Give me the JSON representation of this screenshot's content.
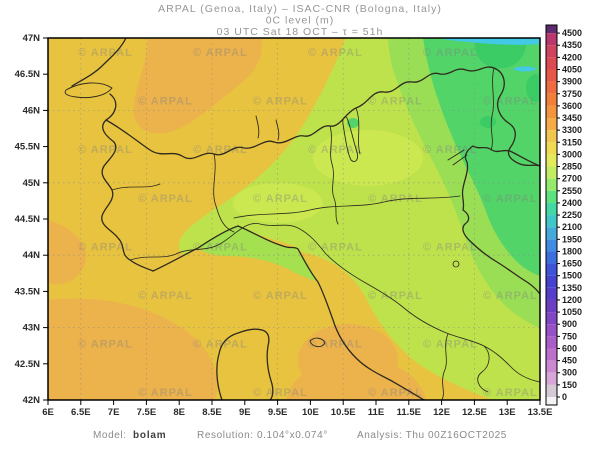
{
  "header": {
    "line1": "ARPAL (Genoa, Italy)  –  ISAC-CNR (Bologna, Italy)",
    "line2": "0C level (m)",
    "line3": "03 UTC Sat 18 OCT  –  τ = 51h"
  },
  "footer": {
    "model_label": "Model:",
    "model_value": "bolam",
    "resolution": "Resolution: 0.104°x0.074°",
    "analysis": "Analysis: Thu 00Z16OCT2025"
  },
  "watermark": {
    "text": "© ARPAL"
  },
  "axes": {
    "lat_labels": [
      "47N",
      "46.5N",
      "46N",
      "45.5N",
      "45N",
      "44.5N",
      "44N",
      "43.5N",
      "43N",
      "42.5N",
      "42N"
    ],
    "lon_labels": [
      "6E",
      "6.5E",
      "7E",
      "7.5E",
      "8E",
      "8.5E",
      "9E",
      "9.5E",
      "10E",
      "10.5E",
      "11E",
      "11.5E",
      "12E",
      "12.5E",
      "13E",
      "13.5E"
    ]
  },
  "colorbar": {
    "labels": [
      "4500",
      "4350",
      "4200",
      "4050",
      "3900",
      "3750",
      "3600",
      "3450",
      "3300",
      "3150",
      "3000",
      "2850",
      "2700",
      "2550",
      "2400",
      "2250",
      "2100",
      "1950",
      "1800",
      "1650",
      "1500",
      "1350",
      "1200",
      "1050",
      "900",
      "750",
      "600",
      "450",
      "300",
      "150",
      "0"
    ],
    "segment_colors": [
      "#5e2a70",
      "#b8386e",
      "#cf4360",
      "#dd4b52",
      "#e65847",
      "#ee6c3f",
      "#f08038",
      "#f2953c",
      "#f6ab46",
      "#f0c64c",
      "#f0da52",
      "#e3ea5c",
      "#c4ec62",
      "#94ea6a",
      "#5ce27e",
      "#44d8a4",
      "#40c8c8",
      "#44aada",
      "#3f8ce2",
      "#3c6ede",
      "#3e54d6",
      "#4542ce",
      "#553ec8",
      "#6c3ec2",
      "#8146c3",
      "#9750c5",
      "#aa5cc8",
      "#bb70cc",
      "#ca89d0",
      "#d7a6d7",
      "#d6c9d6",
      "#f4f2f4"
    ]
  },
  "map_palette": {
    "base_3150": "#e8c340",
    "orange_3300": "#ecb24c",
    "yellow_green_2850": "#bee24c",
    "light_patch_2950": "#cbe851",
    "coastal_green_2750": "#a5e050",
    "light_green_2700": "#9ade55",
    "green_2550": "#52d468",
    "dark_green_2400": "#3bcc66",
    "cyan_2250": "#41c9e5",
    "border_color": "#2f2a1e",
    "grid_color": "#8a8a8a",
    "frame_color": "#000000"
  }
}
